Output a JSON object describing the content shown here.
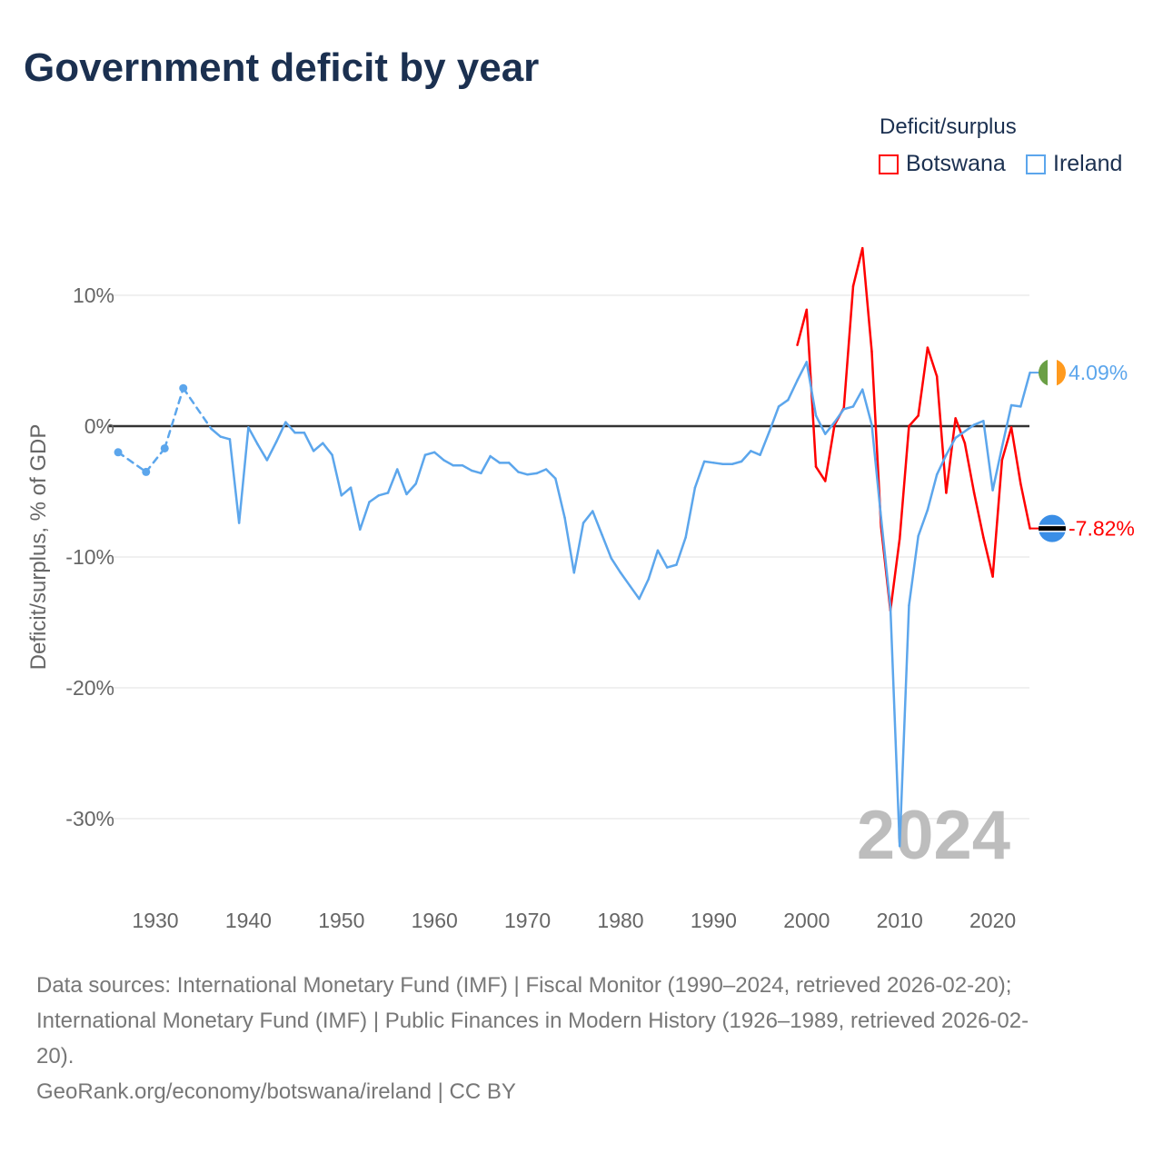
{
  "title": "Government deficit by year",
  "legend": {
    "title": "Deficit/surplus",
    "items": [
      {
        "name": "Botswana",
        "color": "#ff0000"
      },
      {
        "name": "Ireland",
        "color": "#5ca6ec"
      }
    ]
  },
  "sources": {
    "line1": "Data sources: International Monetary Fund (IMF) | Fiscal Monitor (1990–2024, retrieved 2026-02-20);",
    "line2": "International Monetary Fund (IMF) | Public Finances in Modern History (1926–1989, retrieved 2026-02-",
    "line3": "20).",
    "line4": "GeoRank.org/economy/botswana/ireland | CC BY"
  },
  "chart_data": {
    "type": "line",
    "title": "Government deficit by year",
    "ylabel": "Deficit/surplus, % of GDP",
    "xlabel": "",
    "watermark_year": "2024",
    "xlim": [
      1926,
      2024
    ],
    "ylim": [
      -35,
      16
    ],
    "xticks": [
      1930,
      1940,
      1950,
      1960,
      1970,
      1980,
      1990,
      2000,
      2010,
      2020
    ],
    "yticks": [
      {
        "v": 10,
        "label": "10%"
      },
      {
        "v": 0,
        "label": "0%"
      },
      {
        "v": -10,
        "label": "-10%"
      },
      {
        "v": -20,
        "label": "-20%"
      },
      {
        "v": -30,
        "label": "-30%"
      }
    ],
    "grid": true,
    "legend_position": "top-right",
    "series": [
      {
        "name": "Ireland",
        "color": "#5ca6ec",
        "end_label": "4.09%",
        "flag": "ireland",
        "x": [
          1926,
          1929,
          1931,
          1933,
          1936,
          1937,
          1938,
          1939,
          1940,
          1941,
          1942,
          1943,
          1944,
          1945,
          1946,
          1947,
          1948,
          1949,
          1950,
          1951,
          1952,
          1953,
          1954,
          1955,
          1956,
          1957,
          1958,
          1959,
          1960,
          1961,
          1962,
          1963,
          1964,
          1965,
          1966,
          1967,
          1968,
          1969,
          1970,
          1971,
          1972,
          1973,
          1974,
          1975,
          1976,
          1977,
          1978,
          1979,
          1980,
          1981,
          1982,
          1983,
          1984,
          1985,
          1986,
          1987,
          1988,
          1989,
          1990,
          1991,
          1992,
          1993,
          1994,
          1995,
          1996,
          1997,
          1998,
          1999,
          2000,
          2001,
          2002,
          2003,
          2004,
          2005,
          2006,
          2007,
          2008,
          2009,
          2010,
          2011,
          2012,
          2013,
          2014,
          2015,
          2016,
          2017,
          2018,
          2019,
          2020,
          2021,
          2022,
          2023,
          2024
        ],
        "y": [
          -2.0,
          -3.5,
          -1.7,
          2.9,
          -0.2,
          -0.8,
          -1.0,
          -7.4,
          -0.1,
          -1.4,
          -2.6,
          -1.2,
          0.3,
          -0.5,
          -0.5,
          -1.9,
          -1.3,
          -2.2,
          -5.3,
          -4.7,
          -7.9,
          -5.8,
          -5.3,
          -5.1,
          -3.3,
          -5.2,
          -4.4,
          -2.2,
          -2.0,
          -2.6,
          -3.0,
          -3.0,
          -3.4,
          -3.6,
          -2.3,
          -2.8,
          -2.8,
          -3.5,
          -3.7,
          -3.6,
          -3.3,
          -4.0,
          -7.0,
          -11.2,
          -7.4,
          -6.5,
          -8.3,
          -10.1,
          -11.2,
          -12.2,
          -13.2,
          -11.7,
          -9.5,
          -10.8,
          -10.6,
          -8.5,
          -4.7,
          -2.7,
          -2.8,
          -2.9,
          -2.9,
          -2.7,
          -1.9,
          -2.2,
          -0.4,
          1.5,
          2.0,
          3.5,
          4.9,
          0.8,
          -0.6,
          0.3,
          1.3,
          1.5,
          2.8,
          0.1,
          -7.0,
          -13.8,
          -32.1,
          -13.7,
          -8.4,
          -6.4,
          -3.7,
          -2.2,
          -0.9,
          -0.4,
          0.1,
          0.4,
          -4.9,
          -1.6,
          1.6,
          1.5,
          4.09
        ]
      },
      {
        "name": "Botswana",
        "color": "#ff0000",
        "end_label": "-7.82%",
        "flag": "botswana",
        "x": [
          1999,
          2000,
          2001,
          2002,
          2003,
          2004,
          2005,
          2006,
          2007,
          2008,
          2009,
          2010,
          2011,
          2012,
          2013,
          2014,
          2015,
          2016,
          2017,
          2018,
          2019,
          2020,
          2021,
          2022,
          2023,
          2024
        ],
        "y": [
          6.2,
          8.9,
          -3.1,
          -4.2,
          0.1,
          1.4,
          10.7,
          13.6,
          5.7,
          -7.7,
          -14.1,
          -8.6,
          0.0,
          0.8,
          6.0,
          3.8,
          -5.1,
          0.6,
          -1.3,
          -5.1,
          -8.5,
          -11.5,
          -2.6,
          -0.1,
          -4.4,
          -7.82
        ]
      }
    ]
  }
}
